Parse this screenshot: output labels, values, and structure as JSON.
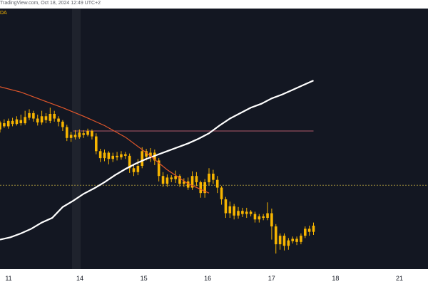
{
  "header": {
    "attribution": "TradingView.com, Oct 18, 2024 12:49 UTC+2",
    "symbol": "DA"
  },
  "colors": {
    "background": "#131722",
    "candle": "#f7b500",
    "ma_slow": "#ffffff",
    "ma_fast": "#e0562b",
    "resistance": "#b05a6a",
    "support": "#9a8a3a"
  },
  "chart_data": {
    "type": "line",
    "x_tick_labels": [
      "11",
      "14",
      "15",
      "16",
      "17",
      "18",
      "21"
    ],
    "series": [
      {
        "values": [
          [
            0.0,
            58
          ],
          [
            0.5,
            61
          ],
          [
            1.0,
            66
          ],
          [
            1.5,
            72
          ],
          [
            2.0,
            80
          ],
          [
            2.5,
            86
          ],
          [
            3.0,
            100
          ],
          [
            3.5,
            108
          ],
          [
            4.0,
            117
          ],
          [
            4.5,
            124
          ],
          [
            5.0,
            132
          ],
          [
            5.5,
            141
          ],
          [
            6.0,
            149
          ],
          [
            6.5,
            156
          ],
          [
            7.0,
            162
          ],
          [
            7.5,
            167
          ],
          [
            8.0,
            172
          ],
          [
            8.5,
            177
          ],
          [
            9.0,
            182
          ],
          [
            9.5,
            188
          ],
          [
            10.0,
            195
          ],
          [
            10.5,
            205
          ],
          [
            11.0,
            214
          ],
          [
            11.5,
            221
          ],
          [
            12.0,
            228
          ],
          [
            12.5,
            233
          ],
          [
            13.0,
            240
          ],
          [
            13.5,
            245
          ],
          [
            14.0,
            251
          ],
          [
            14.5,
            257
          ],
          [
            15.0,
            263
          ]
        ]
      },
      {
        "values": [
          [
            0.0,
            255
          ],
          [
            1.0,
            248
          ],
          [
            2.0,
            238
          ],
          [
            3.0,
            228
          ],
          [
            4.0,
            217
          ],
          [
            5.0,
            205
          ],
          [
            6.0,
            190
          ],
          [
            7.0,
            170
          ],
          [
            8.0,
            148
          ],
          [
            9.0,
            130
          ],
          [
            10.0,
            118
          ]
        ]
      }
    ],
    "levels": [
      {
        "value": 198,
        "x_from": 3.5,
        "x_to": 15.0
      },
      {
        "value": 128
      }
    ],
    "candles": [
      [
        0.0,
        200,
        209,
        196,
        211
      ],
      [
        0.2,
        208,
        204,
        202,
        213
      ],
      [
        0.4,
        204,
        211,
        201,
        214
      ],
      [
        0.6,
        211,
        207,
        204,
        215
      ],
      [
        0.8,
        207,
        213,
        205,
        217
      ],
      [
        1.0,
        212,
        208,
        205,
        219
      ],
      [
        1.2,
        208,
        216,
        206,
        224
      ],
      [
        1.4,
        215,
        221,
        212,
        226
      ],
      [
        1.6,
        221,
        214,
        210,
        224
      ],
      [
        1.8,
        214,
        209,
        205,
        219
      ],
      [
        2.0,
        209,
        217,
        206,
        224
      ],
      [
        2.2,
        217,
        212,
        208,
        221
      ],
      [
        2.4,
        211,
        220,
        208,
        228
      ],
      [
        2.6,
        220,
        214,
        210,
        224
      ],
      [
        2.8,
        214,
        210,
        204,
        217
      ],
      [
        3.0,
        210,
        203,
        198,
        212
      ],
      [
        3.2,
        203,
        189,
        185,
        206
      ],
      [
        3.4,
        189,
        193,
        184,
        197
      ],
      [
        3.6,
        193,
        190,
        187,
        199
      ],
      [
        3.8,
        190,
        196,
        188,
        200
      ],
      [
        4.0,
        195,
        193,
        189,
        199
      ],
      [
        4.2,
        193,
        198,
        191,
        201
      ],
      [
        4.4,
        198,
        191,
        187,
        200
      ],
      [
        4.6,
        191,
        172,
        168,
        195
      ],
      [
        4.8,
        172,
        163,
        158,
        175
      ],
      [
        5.0,
        163,
        170,
        159,
        174
      ],
      [
        5.2,
        170,
        162,
        155,
        172
      ],
      [
        5.4,
        162,
        166,
        158,
        170
      ],
      [
        5.6,
        166,
        164,
        160,
        171
      ],
      [
        5.8,
        164,
        168,
        161,
        172
      ],
      [
        6.0,
        168,
        166,
        162,
        171
      ],
      [
        6.2,
        166,
        150,
        144,
        169
      ],
      [
        6.4,
        150,
        145,
        140,
        156
      ],
      [
        6.6,
        145,
        153,
        141,
        162
      ],
      [
        6.8,
        153,
        172,
        150,
        177
      ],
      [
        7.0,
        172,
        165,
        160,
        175
      ],
      [
        7.2,
        165,
        170,
        158,
        176
      ],
      [
        7.4,
        170,
        160,
        154,
        174
      ],
      [
        7.6,
        160,
        140,
        133,
        163
      ],
      [
        7.8,
        140,
        130,
        126,
        145
      ],
      [
        8.0,
        130,
        138,
        126,
        142
      ],
      [
        8.2,
        138,
        136,
        132,
        141
      ],
      [
        8.4,
        136,
        140,
        131,
        147
      ],
      [
        8.6,
        140,
        130,
        126,
        142
      ],
      [
        8.8,
        130,
        133,
        126,
        137
      ],
      [
        9.0,
        133,
        125,
        122,
        138
      ],
      [
        9.2,
        125,
        140,
        122,
        146
      ],
      [
        9.4,
        140,
        132,
        127,
        145
      ],
      [
        9.6,
        132,
        118,
        112,
        134
      ],
      [
        9.8,
        118,
        132,
        112,
        136
      ],
      [
        10.0,
        132,
        143,
        128,
        150
      ],
      [
        10.2,
        143,
        135,
        130,
        148
      ],
      [
        10.4,
        135,
        125,
        118,
        140
      ],
      [
        10.6,
        125,
        110,
        103,
        127
      ],
      [
        10.8,
        110,
        92,
        86,
        113
      ],
      [
        11.0,
        92,
        101,
        86,
        107
      ],
      [
        11.2,
        101,
        89,
        84,
        104
      ],
      [
        11.4,
        89,
        95,
        85,
        100
      ],
      [
        11.6,
        95,
        91,
        87,
        99
      ],
      [
        11.8,
        91,
        94,
        86,
        99
      ],
      [
        12.0,
        94,
        91,
        88,
        96
      ],
      [
        12.2,
        91,
        84,
        80,
        94
      ],
      [
        12.4,
        84,
        88,
        80,
        91
      ],
      [
        12.6,
        88,
        86,
        83,
        91
      ],
      [
        12.8,
        86,
        92,
        83,
        106
      ],
      [
        13.0,
        92,
        75,
        58,
        98
      ],
      [
        13.2,
        75,
        52,
        40,
        78
      ],
      [
        13.4,
        52,
        63,
        45,
        66
      ],
      [
        13.6,
        63,
        50,
        44,
        66
      ],
      [
        13.8,
        50,
        57,
        45,
        60
      ],
      [
        14.0,
        56,
        59,
        53,
        62
      ],
      [
        14.2,
        59,
        55,
        51,
        62
      ],
      [
        14.4,
        55,
        63,
        52,
        66
      ],
      [
        14.6,
        63,
        72,
        60,
        75
      ],
      [
        14.8,
        72,
        68,
        63,
        76
      ],
      [
        15.0,
        68,
        76,
        64,
        80
      ]
    ]
  }
}
